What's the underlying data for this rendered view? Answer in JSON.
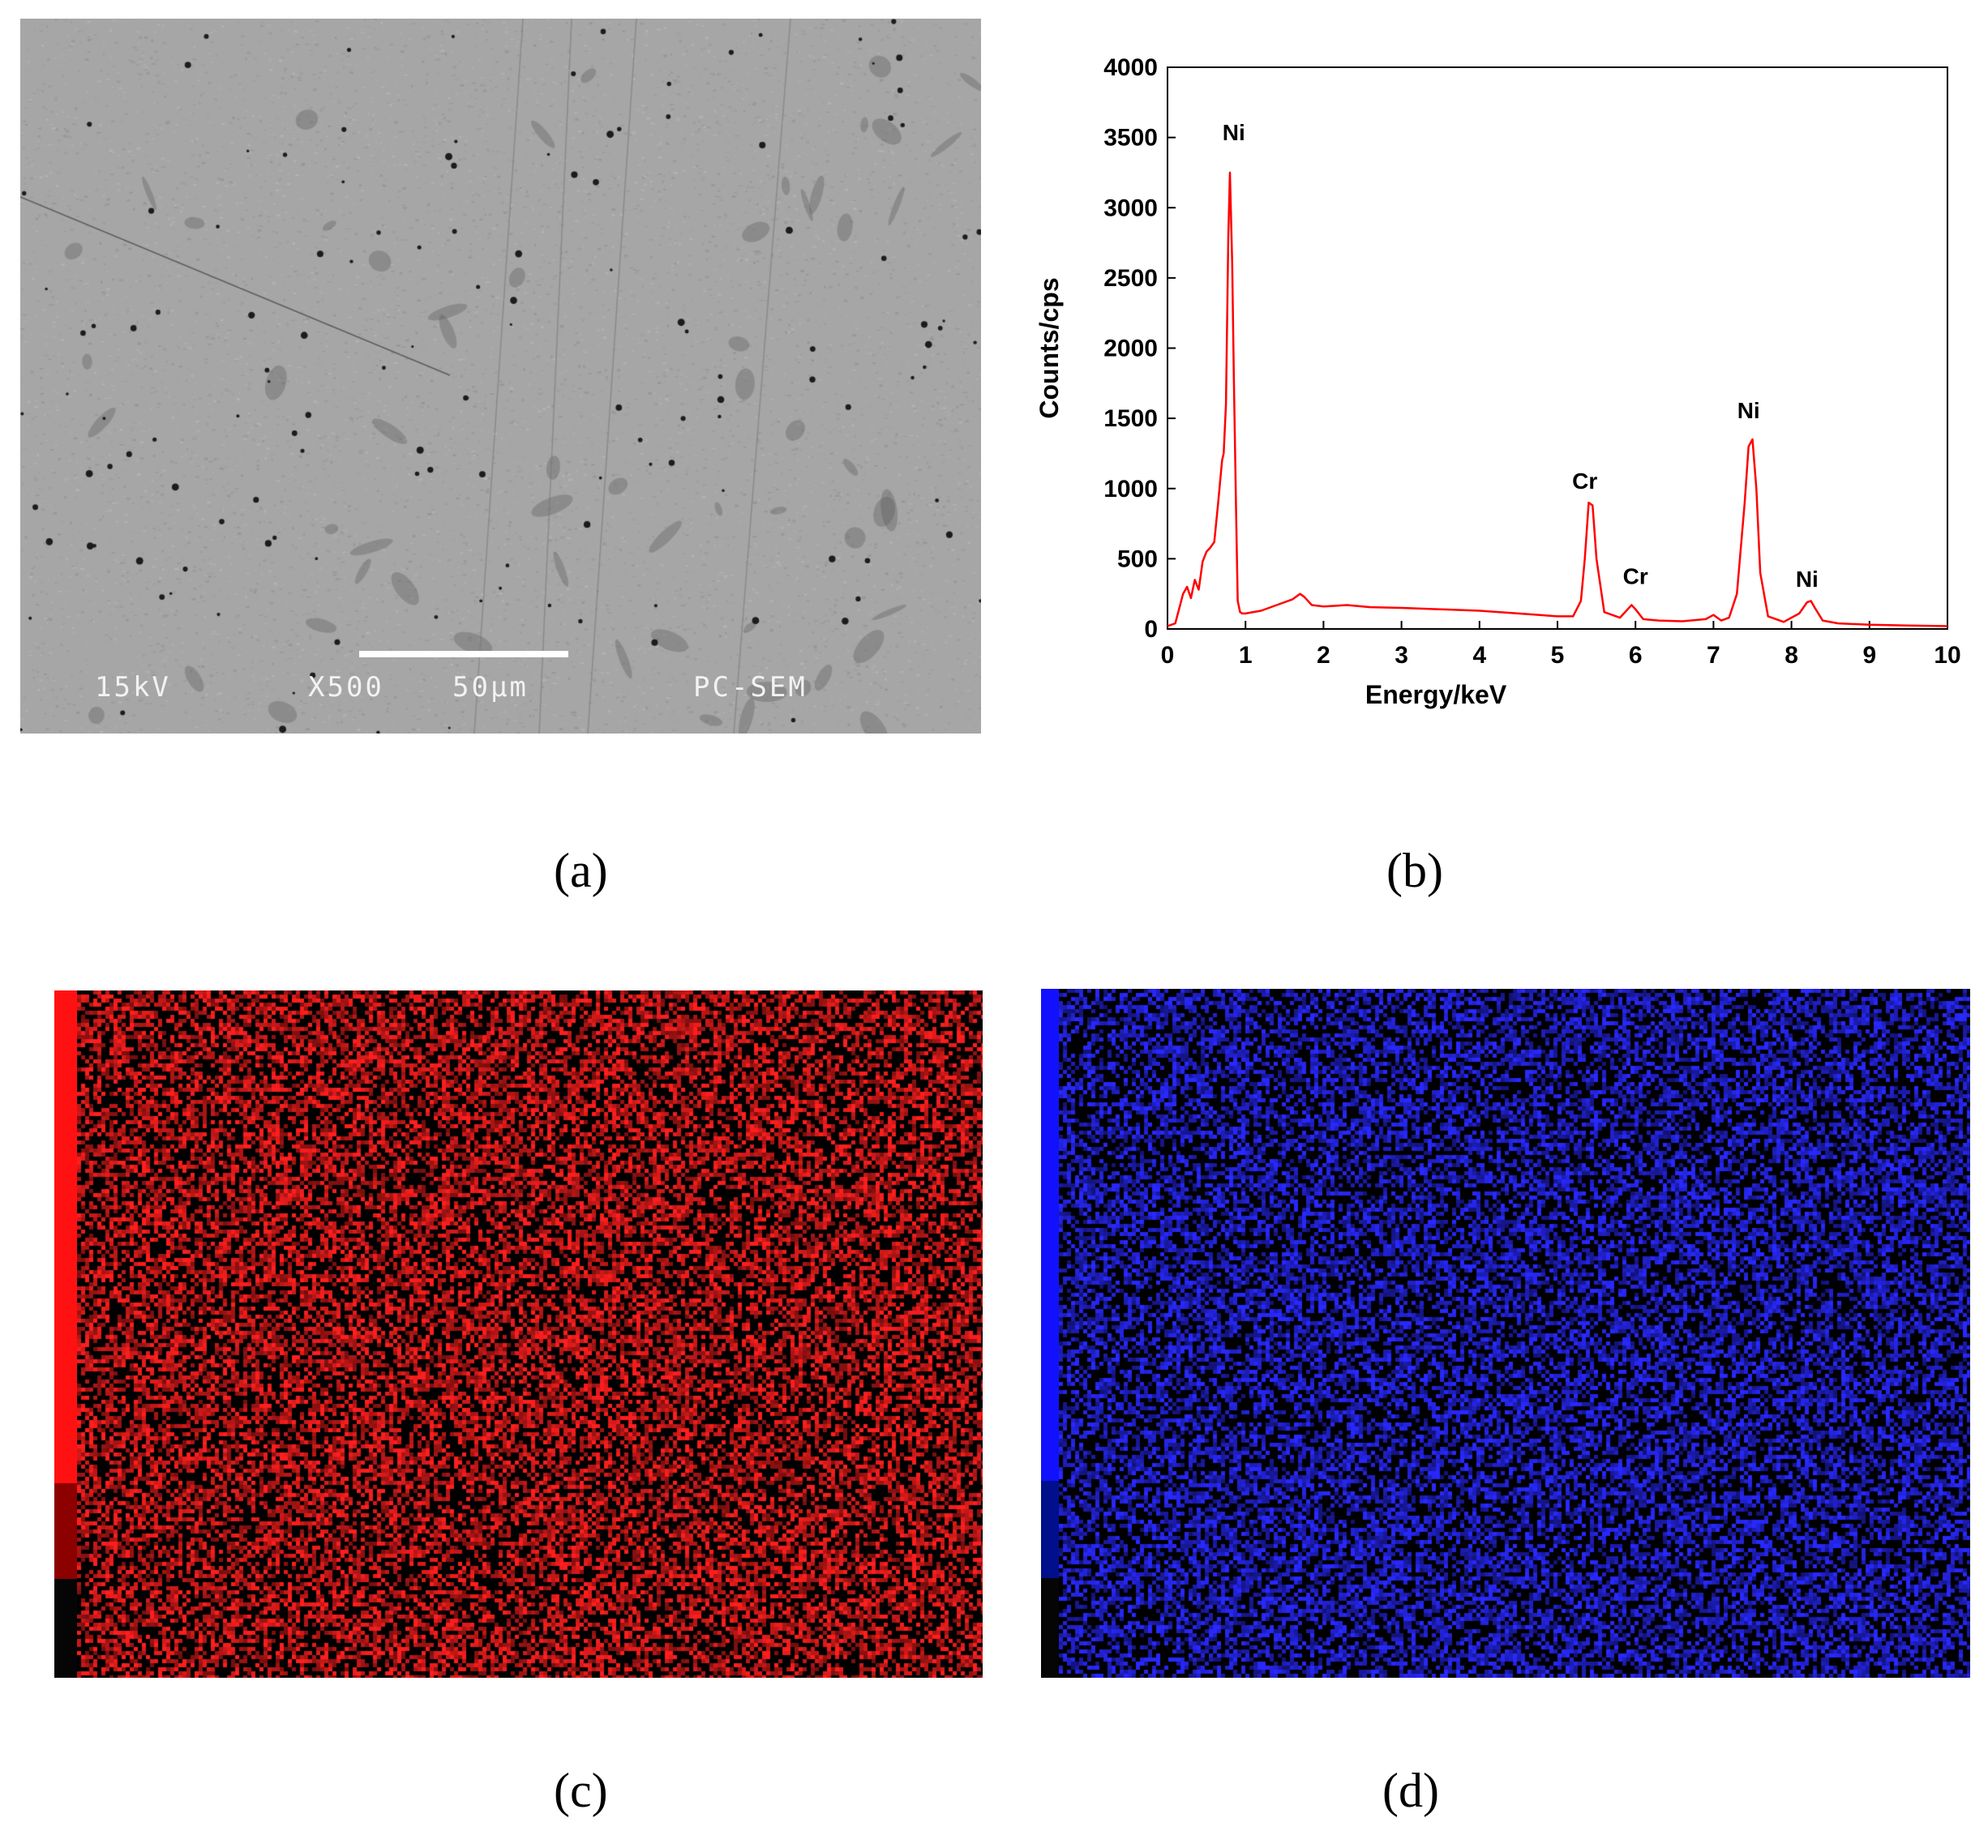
{
  "panels": {
    "a": {
      "label": "(a)",
      "sem_info": {
        "voltage": "15kV",
        "magnification": "X500",
        "scale_bar": "50μm",
        "instrument": "PC-SEM"
      }
    },
    "b": {
      "label": "(b)"
    },
    "c": {
      "label": "(c)",
      "color": "#ff1a1a"
    },
    "d": {
      "label": "(d)",
      "color": "#1a1aff"
    }
  },
  "chart_data": {
    "type": "line",
    "title": "",
    "xlabel": "Energy/keV",
    "ylabel": "Counts/cps",
    "xlim": [
      0,
      10
    ],
    "ylim": [
      0,
      4000
    ],
    "xticks": [
      0,
      1,
      2,
      3,
      4,
      5,
      6,
      7,
      8,
      9,
      10
    ],
    "yticks": [
      0,
      500,
      1000,
      1500,
      2000,
      2500,
      3000,
      3500,
      4000
    ],
    "series": [
      {
        "color": "#ff0000",
        "x": [
          0.0,
          0.1,
          0.2,
          0.25,
          0.3,
          0.35,
          0.4,
          0.45,
          0.5,
          0.55,
          0.6,
          0.65,
          0.7,
          0.72,
          0.75,
          0.78,
          0.8,
          0.83,
          0.85,
          0.88,
          0.9,
          0.93,
          0.96,
          1.0,
          1.2,
          1.4,
          1.6,
          1.7,
          1.75,
          1.85,
          2.0,
          2.3,
          2.6,
          3.0,
          3.5,
          4.0,
          4.5,
          5.0,
          5.2,
          5.3,
          5.35,
          5.4,
          5.45,
          5.5,
          5.6,
          5.8,
          5.9,
          5.95,
          6.0,
          6.1,
          6.3,
          6.6,
          6.9,
          7.0,
          7.1,
          7.2,
          7.3,
          7.4,
          7.45,
          7.5,
          7.55,
          7.6,
          7.7,
          7.9,
          8.1,
          8.2,
          8.25,
          8.3,
          8.4,
          8.6,
          9.0,
          9.5,
          10.0
        ],
        "y": [
          20,
          40,
          250,
          300,
          220,
          350,
          280,
          480,
          550,
          580,
          620,
          900,
          1200,
          1250,
          1600,
          2800,
          3250,
          2600,
          1800,
          800,
          200,
          120,
          110,
          110,
          130,
          170,
          210,
          250,
          230,
          170,
          160,
          170,
          155,
          150,
          140,
          130,
          110,
          90,
          90,
          200,
          500,
          900,
          880,
          500,
          120,
          80,
          140,
          170,
          140,
          70,
          60,
          55,
          70,
          100,
          60,
          80,
          250,
          900,
          1300,
          1350,
          1000,
          400,
          90,
          50,
          110,
          190,
          200,
          150,
          60,
          40,
          30,
          25,
          20
        ]
      }
    ],
    "annotations": [
      {
        "text": "Ni",
        "x": 0.85,
        "y": 3480
      },
      {
        "text": "Cr",
        "x": 5.35,
        "y": 1000
      },
      {
        "text": "Cr",
        "x": 6.0,
        "y": 320
      },
      {
        "text": "Ni",
        "x": 7.45,
        "y": 1500
      },
      {
        "text": "Ni",
        "x": 8.2,
        "y": 300
      }
    ]
  }
}
